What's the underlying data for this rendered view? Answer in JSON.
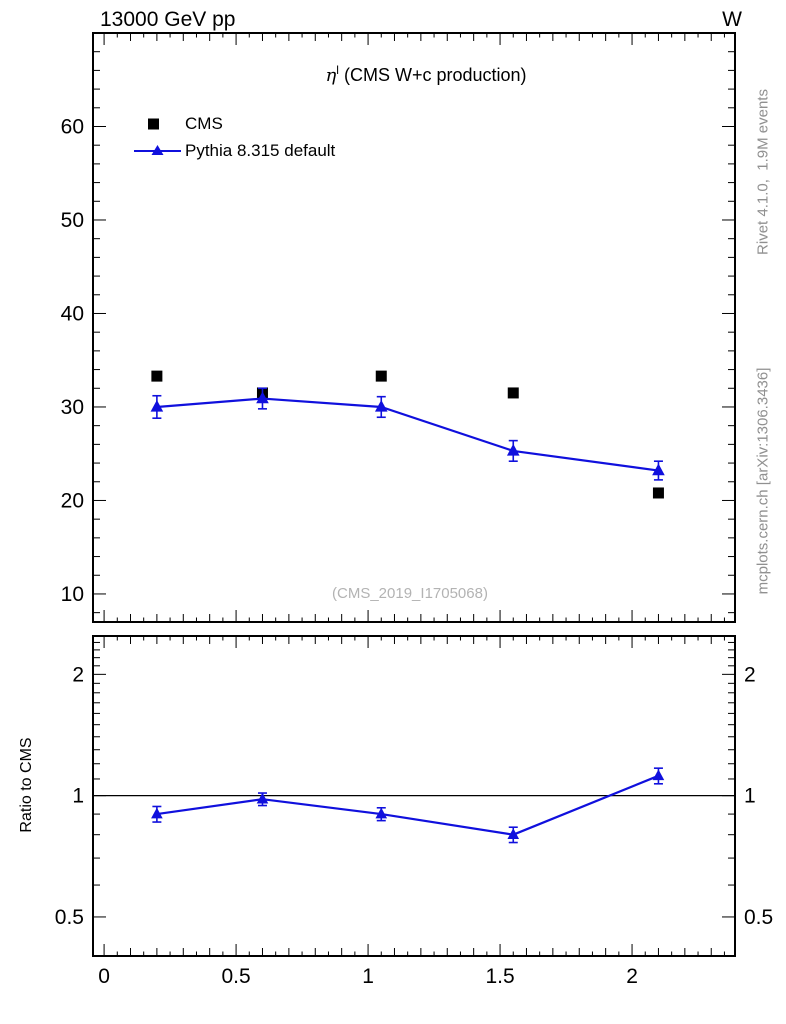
{
  "header": {
    "left": "13000 GeV pp",
    "right": "W"
  },
  "side_notes": {
    "top": "Rivet 4.1.0,  1.9M events",
    "bottom": "mcplots.cern.ch [arXiv:1306.3436]"
  },
  "main_panel": {
    "title": {
      "symbol": "η",
      "superscript": "l",
      "rest": " (CMS W+c production)"
    },
    "watermark": "(CMS_2019_I1705068)"
  },
  "colors": {
    "cms": "#000000",
    "pythia": "#1010dd",
    "gray_note": "#909090",
    "watermark": "#b3b3b3",
    "axis": "#000000"
  },
  "chart_data": {
    "type": "scatter",
    "title": "eta^l (CMS W+c production)",
    "x": [
      0.2,
      0.6,
      1.05,
      1.55,
      2.1
    ],
    "series": [
      {
        "name": "CMS",
        "marker": "square",
        "color": "#000000",
        "values": [
          33.3,
          31.5,
          33.3,
          31.5,
          20.8
        ]
      },
      {
        "name": "Pythia 8.315 default",
        "marker": "triangle-line",
        "color": "#1010dd",
        "values": [
          30.0,
          30.9,
          30.0,
          25.3,
          23.2
        ],
        "errors": [
          1.2,
          1.1,
          1.1,
          1.1,
          1.0
        ]
      }
    ],
    "main_axis": {
      "xlim": [
        -0.042,
        2.39
      ],
      "ylim": [
        7,
        70
      ],
      "xticks": [
        0,
        0.5,
        1,
        1.5,
        2
      ],
      "yticks": [
        10,
        20,
        30,
        40,
        50,
        60
      ],
      "x_minor_step": 0.05,
      "y_minor_step": 2,
      "grid": "off",
      "legend_position": "top-left-inside"
    },
    "ratio_panel": {
      "ylabel": "Ratio to CMS",
      "yscale": "log",
      "ylim": [
        0.4,
        2.49
      ],
      "yticks": [
        0.5,
        1,
        2
      ],
      "reference_line": 1.0,
      "values": [
        0.9,
        0.98,
        0.9,
        0.8,
        1.12
      ],
      "errors": [
        0.04,
        0.035,
        0.033,
        0.035,
        0.05
      ]
    }
  }
}
